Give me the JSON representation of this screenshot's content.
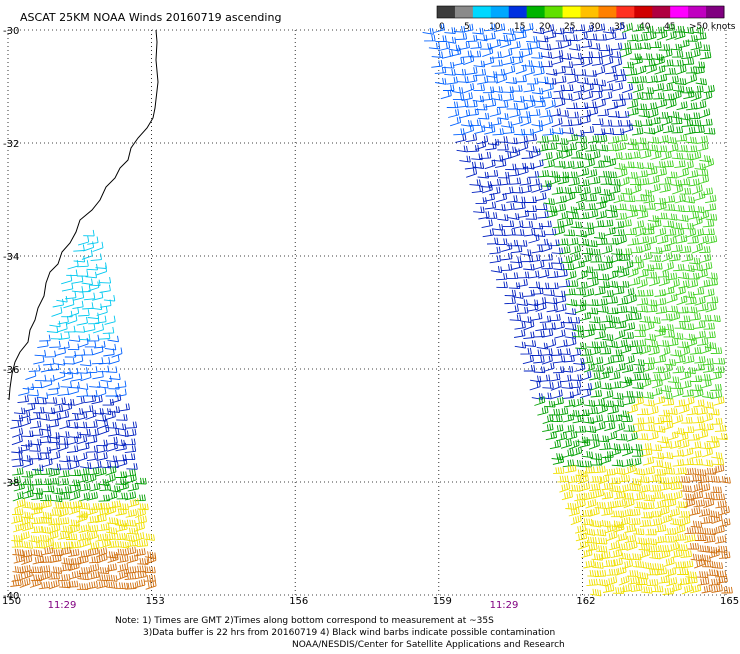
{
  "title": "ASCAT 25KM NOAA Winds 20160719 ascending",
  "legend": {
    "labels": [
      "0",
      "5",
      "10",
      "15",
      "20",
      "25",
      "30",
      "35",
      "40",
      "45",
      ">50 knots"
    ],
    "colors": [
      "#3c3c3c",
      "#8a8a8a",
      "#00d8ff",
      "#00a8ff",
      "#0030e0",
      "#00b400",
      "#60e000",
      "#ffff00",
      "#ffc000",
      "#ff8000",
      "#ff3020",
      "#d00000",
      "#b00040",
      "#ff00ff",
      "#c000c0",
      "#800080"
    ]
  },
  "chart_data": {
    "type": "map",
    "x_ticks": [
      "150",
      "153",
      "156",
      "159",
      "162",
      "165"
    ],
    "y_ticks": [
      "-30",
      "-32",
      "-34",
      "-36",
      "-38",
      "-40"
    ],
    "xlim": [
      150,
      165
    ],
    "ylim": [
      -40,
      -30
    ],
    "grid": true,
    "pass_times": [
      "11:29",
      "11:29"
    ],
    "swaths": [
      {
        "lon_range": [
          150,
          153.2
        ],
        "lat_range": [
          -40,
          -34.2
        ],
        "speed_knots": [
          5,
          30
        ]
      },
      {
        "lon_range": [
          159,
          165
        ],
        "lat_range": [
          -40,
          -30
        ],
        "speed_knots": [
          10,
          35
        ]
      }
    ]
  },
  "notes": {
    "line1": "Note: 1) Times are GMT 2)Times along bottom correspond to measurement at ~35S",
    "line2": "3)Data buffer is 22 hrs from 20160719 4) Black wind barbs indicate possible contamination",
    "line3": "NOAA/NESDIS/Center for Satellite Applications and Research"
  }
}
